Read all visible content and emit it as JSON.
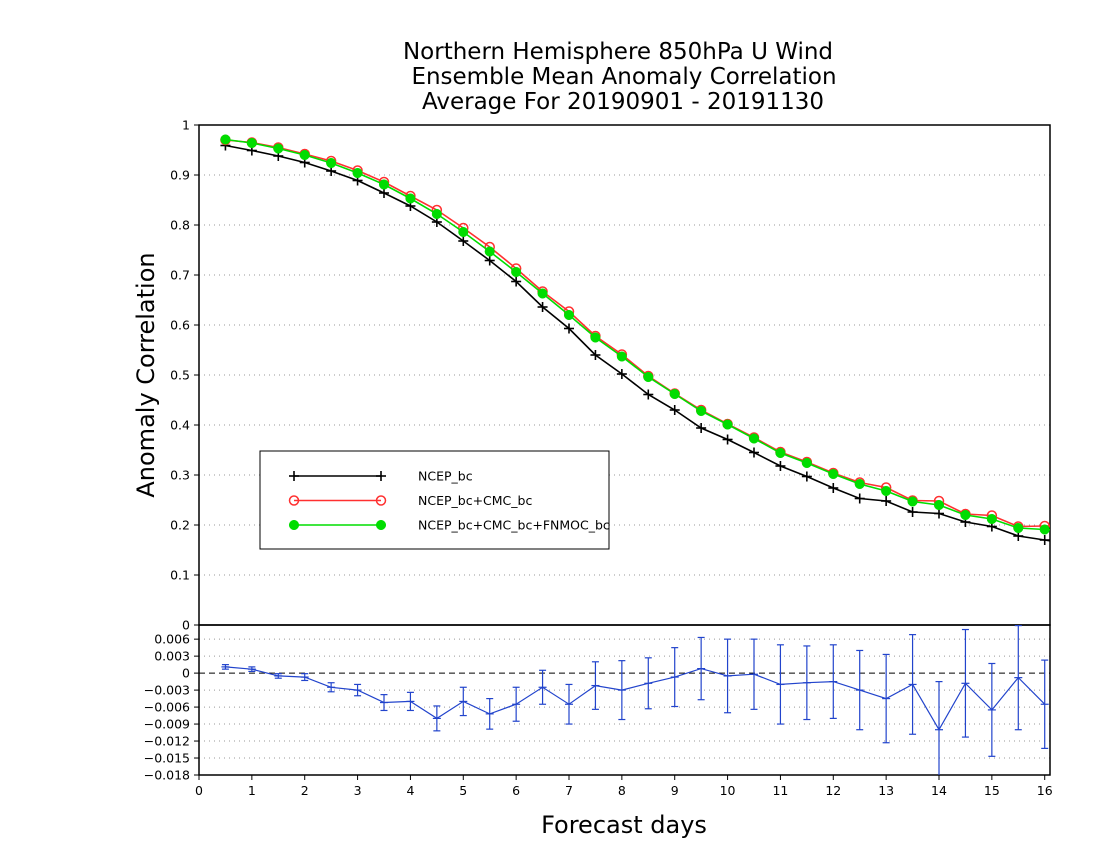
{
  "title": {
    "line1": "Northern Hemisphere 850hPa U Wind",
    "line2": "Ensemble Mean Anomaly Correlation",
    "line3": "Average For 20190901 - 20191130"
  },
  "chart_data": [
    {
      "type": "line",
      "ylabel": "Anomaly Correlation",
      "xlim": [
        0,
        16.1
      ],
      "ylim": [
        0,
        1
      ],
      "grid": true,
      "legend_position": "center-left",
      "yticks": [
        "0",
        "0.1",
        "0.2",
        "0.3",
        "0.4",
        "0.5",
        "0.6",
        "0.7",
        "0.8",
        "0.9",
        "1"
      ],
      "x": [
        0.5,
        1,
        1.5,
        2,
        2.5,
        3,
        3.5,
        4,
        4.5,
        5,
        5.5,
        6,
        6.5,
        7,
        7.5,
        8,
        8.5,
        9,
        9.5,
        10,
        10.5,
        11,
        11.5,
        12,
        12.5,
        13,
        13.5,
        14,
        14.5,
        15,
        15.5,
        16
      ],
      "series": [
        {
          "name": "NCEP_bc",
          "color": "#000000",
          "marker": "plus",
          "values": [
            0.959,
            0.949,
            0.938,
            0.925,
            0.908,
            0.889,
            0.864,
            0.838,
            0.806,
            0.768,
            0.729,
            0.687,
            0.636,
            0.593,
            0.54,
            0.502,
            0.461,
            0.43,
            0.394,
            0.371,
            0.345,
            0.318,
            0.297,
            0.274,
            0.253,
            0.248,
            0.226,
            0.223,
            0.206,
            0.197,
            0.178,
            0.17
          ]
        },
        {
          "name": "NCEP_bc+CMC_bc",
          "color": "#ff3030",
          "marker": "open-circle",
          "values": [
            0.97,
            0.965,
            0.955,
            0.942,
            0.928,
            0.909,
            0.886,
            0.858,
            0.83,
            0.794,
            0.756,
            0.713,
            0.667,
            0.627,
            0.578,
            0.541,
            0.498,
            0.463,
            0.43,
            0.402,
            0.375,
            0.346,
            0.326,
            0.304,
            0.285,
            0.275,
            0.249,
            0.248,
            0.222,
            0.219,
            0.197,
            0.198
          ]
        },
        {
          "name": "NCEP_bc+CMC_bc+FNMOC_bc",
          "color": "#00dd00",
          "marker": "filled-circle",
          "values": [
            0.971,
            0.964,
            0.953,
            0.94,
            0.924,
            0.904,
            0.881,
            0.853,
            0.822,
            0.786,
            0.747,
            0.706,
            0.663,
            0.62,
            0.575,
            0.537,
            0.496,
            0.462,
            0.428,
            0.401,
            0.373,
            0.344,
            0.324,
            0.302,
            0.282,
            0.268,
            0.247,
            0.24,
            0.22,
            0.212,
            0.194,
            0.191
          ]
        }
      ]
    },
    {
      "type": "line",
      "xlabel": "Forecast days",
      "xlim": [
        0,
        16.1
      ],
      "ylim": [
        -0.018,
        0.0085
      ],
      "grid": true,
      "yticks": [
        "0.006",
        "0.003",
        "0",
        "−0.003",
        "−0.006",
        "−0.009",
        "−0.012",
        "−0.015",
        "−0.018"
      ],
      "xticks": [
        "0",
        "1",
        "2",
        "3",
        "4",
        "5",
        "6",
        "7",
        "8",
        "9",
        "10",
        "11",
        "12",
        "13",
        "14",
        "15",
        "16"
      ],
      "zero_line": true,
      "series": [
        {
          "color": "#2244cc",
          "x": [
            0.5,
            1,
            1.5,
            2,
            2.5,
            3,
            3.5,
            4,
            4.5,
            5,
            5.5,
            6,
            6.5,
            7,
            7.5,
            8,
            8.5,
            9,
            9.5,
            10,
            10.5,
            11,
            11.5,
            12,
            12.5,
            13,
            13.5,
            14,
            14.5,
            15,
            15.5,
            16
          ],
          "values": [
            0.0011,
            0.0007,
            -0.0005,
            -0.0007,
            -0.0025,
            -0.003,
            -0.0052,
            -0.005,
            -0.008,
            -0.005,
            -0.0072,
            -0.0055,
            -0.0025,
            -0.0055,
            -0.0022,
            -0.003,
            -0.0018,
            -0.0007,
            0.0008,
            -0.0005,
            -0.0002,
            -0.002,
            -0.0017,
            -0.0015,
            -0.003,
            -0.0045,
            -0.002,
            -0.01,
            -0.0018,
            -0.0065,
            -0.0008,
            -0.0055
          ],
          "error": [
            0.0004,
            0.0004,
            0.0004,
            0.0006,
            0.0008,
            0.001,
            0.0014,
            0.0016,
            0.0022,
            0.0025,
            0.0027,
            0.003,
            0.003,
            0.0035,
            0.0042,
            0.0052,
            0.0045,
            0.0052,
            0.0055,
            0.0065,
            0.0062,
            0.007,
            0.0065,
            0.0065,
            0.007,
            0.0078,
            0.0088,
            0.0085,
            0.0095,
            0.0082,
            0.0092,
            0.0078
          ]
        }
      ]
    }
  ]
}
